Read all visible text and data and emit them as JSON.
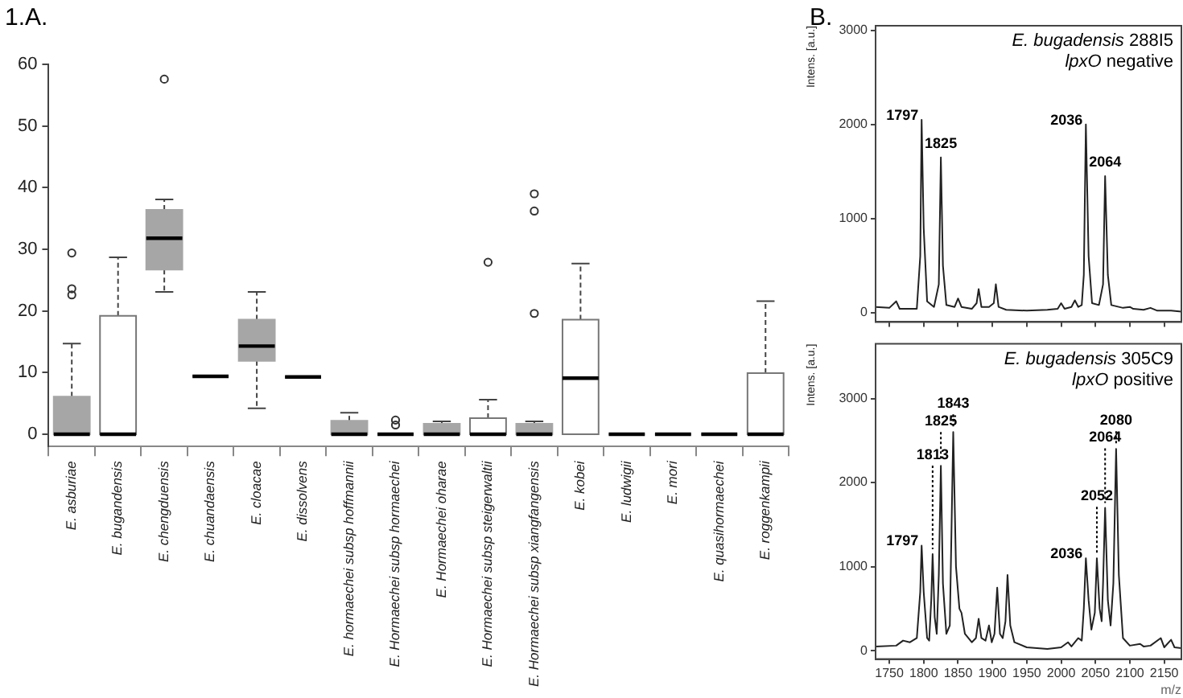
{
  "chart_data": [
    {
      "type": "box",
      "annotations": [
        "1.A."
      ],
      "categories": [
        "E. asburiae",
        "E. bugandensis",
        "E. chengduensis",
        "E. chuandaensis",
        "E. cloacae",
        "E. dissolvens",
        "E. hormaechei subsp hoffmannii",
        "E. Hormaechei subsp hormaechei",
        "E. Hormaechei oharae",
        "E. Hormaechei subsp steigerwaltii",
        "E. Hormaechei subsp xiangfangensis",
        "E. kobei",
        "E. ludwigii",
        "E. mori",
        "E. quasihormaechei",
        "E. roggenkampii"
      ],
      "colors": [
        "#a6a6a6",
        "#ffffff",
        "#a6a6a6",
        "#a6a6a6",
        "#a6a6a6",
        "#a6a6a6",
        "#a6a6a6",
        "#a6a6a6",
        "#a6a6a6",
        "#ffffff",
        "#a6a6a6",
        "#ffffff",
        "#a6a6a6",
        "#a6a6a6",
        "#a6a6a6",
        "#ffffff"
      ],
      "boxes": [
        {
          "low": 0,
          "q1": 0,
          "median": 0,
          "q3": 6.1,
          "high": 14.7,
          "outliers": [
            29.4,
            23.6,
            22.6
          ]
        },
        {
          "low": 0,
          "q1": 0,
          "median": 0,
          "q3": 19.2,
          "high": 28.7
        },
        {
          "low": 23.1,
          "q1": 26.7,
          "median": 31.8,
          "q3": 36.4,
          "high": 38.1,
          "outliers": [
            57.6
          ]
        },
        {
          "low": 9.4,
          "q1": 9.4,
          "median": 9.4,
          "q3": 9.4,
          "high": 9.4
        },
        {
          "low": 4.2,
          "q1": 11.9,
          "median": 14.3,
          "q3": 18.6,
          "high": 23.1
        },
        {
          "low": 9.3,
          "q1": 9.3,
          "median": 9.3,
          "q3": 9.3,
          "high": 9.3
        },
        {
          "low": 0,
          "q1": 0,
          "median": 0,
          "q3": 2.2,
          "high": 3.5
        },
        {
          "low": 0,
          "q1": 0,
          "median": 0,
          "q3": 0,
          "high": 0,
          "outliers": [
            2.3,
            1.5
          ]
        },
        {
          "low": 0,
          "q1": 0,
          "median": 0,
          "q3": 1.7,
          "high": 2.1
        },
        {
          "low": 0,
          "q1": 0,
          "median": 0,
          "q3": 2.6,
          "high": 5.6,
          "outliers": [
            27.9
          ]
        },
        {
          "low": 0,
          "q1": 0,
          "median": 0,
          "q3": 1.7,
          "high": 2.1,
          "outliers": [
            39.0,
            36.2,
            19.6
          ]
        },
        {
          "low": 0,
          "q1": 0,
          "median": 9.1,
          "q3": 18.6,
          "high": 27.7
        },
        {
          "low": 0,
          "q1": 0,
          "median": 0,
          "q3": 0,
          "high": 0
        },
        {
          "low": 0,
          "q1": 0,
          "median": 0,
          "q3": 0,
          "high": 0
        },
        {
          "low": 0,
          "q1": 0,
          "median": 0,
          "q3": 0,
          "high": 0
        },
        {
          "low": 0,
          "q1": 0,
          "median": 0,
          "q3": 9.9,
          "high": 21.6
        }
      ],
      "ylim": [
        -2,
        60
      ],
      "yticks": [
        0,
        10,
        20,
        30,
        40,
        50,
        60
      ],
      "grid": false,
      "legend": false
    },
    {
      "type": "line",
      "title": "E. bugadensis 288I5",
      "subtitle": "lpxO negative",
      "ylabel": "Intens. [a.u.]",
      "tick_labels": "y",
      "marker": "none",
      "grid": false,
      "legend": false,
      "xlim": [
        1730,
        2175
      ],
      "ylim": [
        -100,
        3050
      ],
      "xticks": [
        1750,
        1800,
        1850,
        1900,
        1950,
        2000,
        2050,
        2100,
        2150
      ],
      "yticks": [
        0,
        1000,
        2000,
        3000
      ],
      "annotations": [
        "B.",
        {
          "text": "1797",
          "x": 1797,
          "y": 2050
        },
        {
          "text": "1825",
          "x": 1825,
          "y": 1650
        },
        {
          "text": "2036",
          "x": 2036,
          "y": 2000
        },
        {
          "text": "2064",
          "x": 2064,
          "y": 1450
        }
      ],
      "series": [
        {
          "color": "#222222",
          "x": [
            1730,
            1750,
            1760,
            1765,
            1790,
            1795,
            1797,
            1800,
            1805,
            1815,
            1822,
            1825,
            1828,
            1833,
            1845,
            1850,
            1855,
            1870,
            1877,
            1880,
            1884,
            1895,
            1902,
            1905,
            1909,
            1920,
            1950,
            1980,
            1995,
            2000,
            2005,
            2015,
            2020,
            2025,
            2030,
            2033,
            2036,
            2040,
            2045,
            2055,
            2061,
            2064,
            2068,
            2073,
            2090,
            2100,
            2105,
            2120,
            2130,
            2140,
            2160,
            2175
          ],
          "values": [
            60,
            50,
            120,
            40,
            40,
            600,
            2050,
            900,
            120,
            60,
            300,
            1650,
            500,
            80,
            60,
            150,
            60,
            40,
            100,
            250,
            60,
            60,
            100,
            300,
            60,
            30,
            20,
            30,
            40,
            100,
            40,
            60,
            130,
            60,
            80,
            400,
            2000,
            600,
            100,
            80,
            300,
            1450,
            400,
            80,
            50,
            60,
            40,
            30,
            50,
            20,
            20,
            10
          ]
        }
      ]
    },
    {
      "type": "line",
      "title": "E. bugadensis 305C9",
      "subtitle": "lpxO positive",
      "ylabel": "Intens. [a.u.]",
      "xlabel": "m/z",
      "marker": "none",
      "grid": false,
      "legend": false,
      "xlim": [
        1730,
        2175
      ],
      "ylim": [
        -100,
        3650
      ],
      "xticks": [
        1750,
        1800,
        1850,
        1900,
        1950,
        2000,
        2050,
        2100,
        2150
      ],
      "yticks": [
        0,
        1000,
        2000,
        3000
      ],
      "annotations": [
        {
          "text": "1797",
          "x": 1797,
          "y": 1250
        },
        {
          "text": "1813",
          "x": 1813,
          "y": 1150
        },
        {
          "text": "1825",
          "x": 1825,
          "y": 2200
        },
        {
          "text": "1843",
          "x": 1843,
          "y": 2600
        },
        {
          "text": "2036",
          "x": 2036,
          "y": 1100
        },
        {
          "text": "2052",
          "x": 2052,
          "y": 1100
        },
        {
          "text": "2064",
          "x": 2064,
          "y": 1700
        },
        {
          "text": "2080",
          "x": 2080,
          "y": 2400
        }
      ],
      "series": [
        {
          "color": "#222222",
          "x": [
            1730,
            1760,
            1770,
            1780,
            1790,
            1795,
            1797,
            1800,
            1805,
            1808,
            1811,
            1813,
            1816,
            1819,
            1822,
            1825,
            1828,
            1833,
            1838,
            1843,
            1847,
            1852,
            1855,
            1860,
            1870,
            1876,
            1880,
            1884,
            1890,
            1895,
            1899,
            1903,
            1907,
            1911,
            1915,
            1919,
            1922,
            1926,
            1932,
            1950,
            1980,
            2000,
            2010,
            2015,
            2025,
            2030,
            2033,
            2036,
            2040,
            2044,
            2049,
            2052,
            2056,
            2059,
            2061,
            2064,
            2068,
            2072,
            2076,
            2080,
            2084,
            2090,
            2100,
            2115,
            2120,
            2130,
            2145,
            2150,
            2160,
            2165,
            2175
          ],
          "values": [
            50,
            60,
            120,
            100,
            150,
            700,
            1250,
            700,
            150,
            120,
            600,
            1150,
            400,
            200,
            900,
            2200,
            800,
            200,
            300,
            2600,
            1000,
            500,
            450,
            200,
            100,
            150,
            380,
            150,
            120,
            300,
            100,
            200,
            750,
            200,
            150,
            350,
            900,
            300,
            100,
            40,
            20,
            40,
            100,
            50,
            150,
            120,
            500,
            1100,
            600,
            250,
            450,
            1100,
            500,
            350,
            800,
            1700,
            600,
            300,
            800,
            2400,
            900,
            150,
            60,
            80,
            50,
            60,
            150,
            40,
            130,
            40,
            30
          ]
        }
      ]
    }
  ]
}
